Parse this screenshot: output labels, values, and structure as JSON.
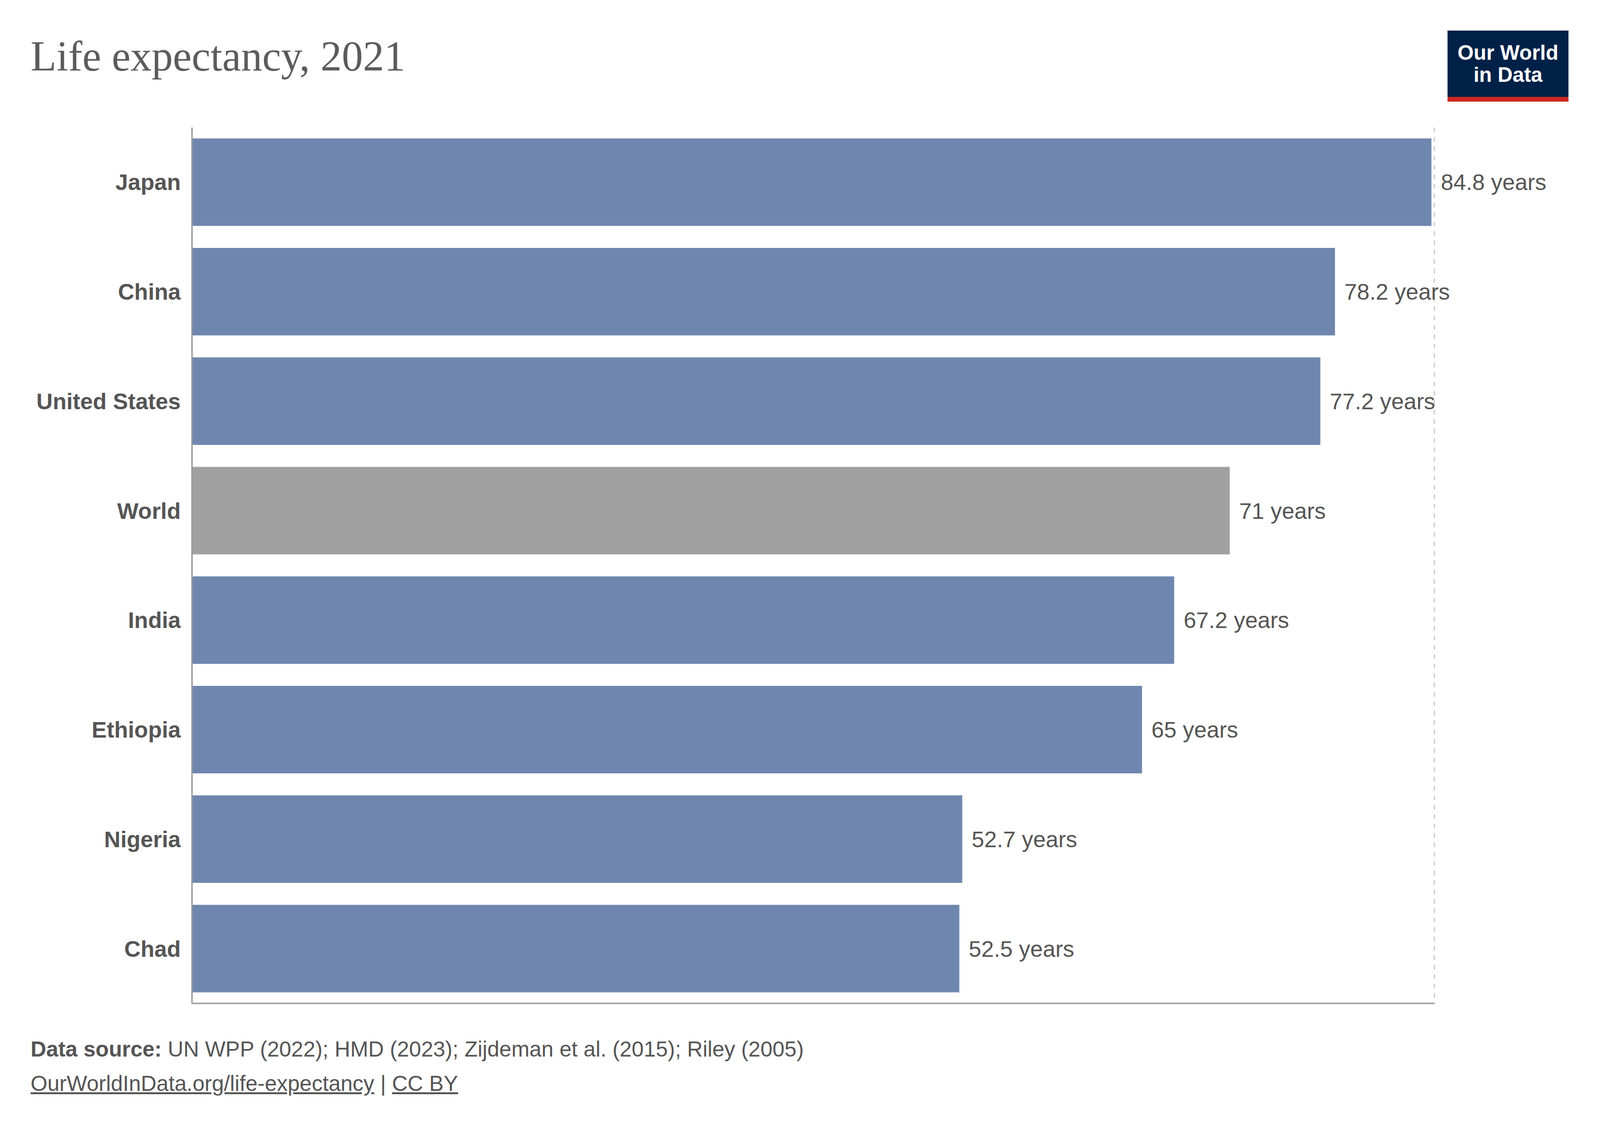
{
  "chart_data": {
    "type": "bar",
    "title": "Life expectancy, 2021",
    "orientation": "horizontal",
    "categories": [
      "Japan",
      "China",
      "United States",
      "World",
      "India",
      "Ethiopia",
      "Nigeria",
      "Chad"
    ],
    "values": [
      84.8,
      78.2,
      77.2,
      71,
      67.2,
      65,
      52.7,
      52.5
    ],
    "value_labels": [
      "84.8 years",
      "78.2 years",
      "77.2 years",
      "71 years",
      "67.2 years",
      "65 years",
      "52.7 years",
      "52.5 years"
    ],
    "data_labels": true,
    "colors": [
      "#6f87ae",
      "#6f87ae",
      "#6f87ae",
      "#a0a0a0",
      "#6f87ae",
      "#6f87ae",
      "#6f87ae",
      "#6f87ae"
    ],
    "xlim": [
      0,
      85
    ],
    "xticks": [
      0,
      10,
      20,
      30,
      40,
      50,
      60,
      70,
      80
    ],
    "grid": true,
    "tick_labels": "y",
    "source_label": "Data source:",
    "source": "UN WPP (2022); HMD (2023); Zijdeman et al. (2015); Riley (2005)",
    "footer": [
      "OurWorldInData.org/life-expectancy",
      "CC BY"
    ],
    "footer_separator": "|",
    "logo": [
      "Our World",
      "in Data"
    ]
  }
}
